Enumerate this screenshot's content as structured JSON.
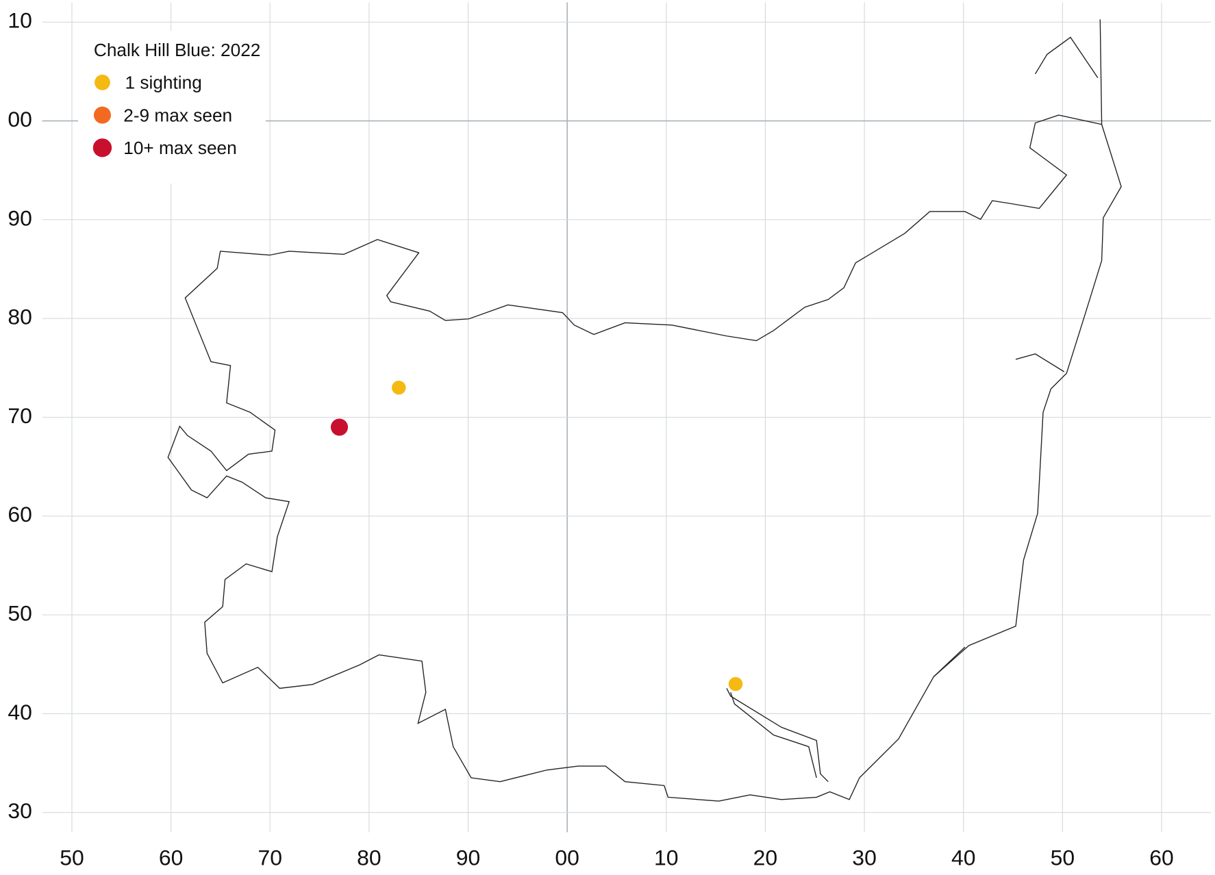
{
  "chart_data": {
    "type": "scatter",
    "legend_title": "Chalk Hill Blue:  2022",
    "series": [
      {
        "name": "1 sighting",
        "color": "#f5b914",
        "x": [
          83,
          117
        ],
        "values": [
          73,
          43
        ]
      },
      {
        "name": "2-9 max seen",
        "color": "#f26a21",
        "x": [],
        "values": []
      },
      {
        "name": "10+ max seen",
        "color": "#c8102e",
        "x": [
          77
        ],
        "values": [
          69
        ]
      }
    ],
    "xlim": [
      47,
      165
    ],
    "ylim": [
      28,
      112
    ],
    "xticks": [
      50,
      60,
      70,
      80,
      90,
      {
        "value": 100,
        "label": "00"
      },
      {
        "value": 110,
        "label": "10"
      },
      {
        "value": 120,
        "label": "20"
      },
      {
        "value": 130,
        "label": "30"
      },
      {
        "value": 140,
        "label": "40"
      },
      {
        "value": 150,
        "label": "50"
      },
      {
        "value": 160,
        "label": "60"
      }
    ],
    "yticks": [
      30,
      40,
      50,
      60,
      70,
      80,
      90,
      {
        "value": 100,
        "label": "00"
      },
      {
        "value": 110,
        "label": "10"
      }
    ],
    "grid": true,
    "legend": "upper left"
  }
}
